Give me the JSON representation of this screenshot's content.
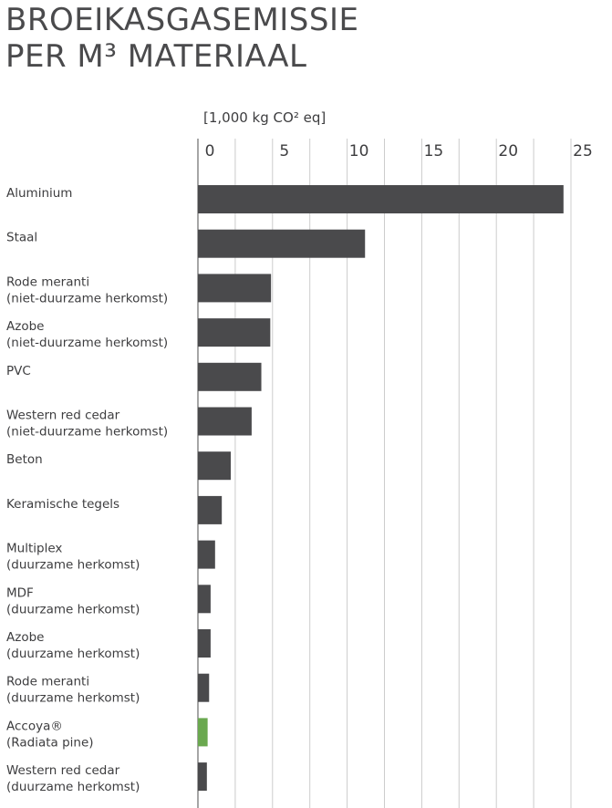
{
  "title": [
    "BROEIKASGASEMISSIE",
    "PER M³ MATERIAAL"
  ],
  "chart_data": {
    "type": "bar",
    "orientation": "horizontal",
    "unit_label": "[1,000 kg CO² eq]",
    "xlim": [
      0,
      25
    ],
    "ticks": [
      0,
      5,
      10,
      15,
      20,
      25
    ],
    "grid": true,
    "colors": {
      "bar": "#4a4a4c",
      "highlight": "#6aa84f",
      "grid": "#cccccc",
      "axis": "#888888"
    },
    "categories": [
      {
        "label": [
          "Aluminium"
        ],
        "value": 24.5,
        "highlight": false
      },
      {
        "label": [
          "Staal"
        ],
        "value": 11.2,
        "highlight": false
      },
      {
        "label": [
          "Rode meranti",
          "(niet-duurzame herkomst)"
        ],
        "value": 4.9,
        "highlight": false
      },
      {
        "label": [
          "Azobe",
          "(niet-duurzame herkomst)"
        ],
        "value": 4.85,
        "highlight": false
      },
      {
        "label": [
          "PVC"
        ],
        "value": 4.25,
        "highlight": false
      },
      {
        "label": [
          "Western red cedar",
          "(niet-duurzame herkomst)"
        ],
        "value": 3.6,
        "highlight": false
      },
      {
        "label": [
          "Beton"
        ],
        "value": 2.2,
        "highlight": false
      },
      {
        "label": [
          "Keramische tegels"
        ],
        "value": 1.6,
        "highlight": false
      },
      {
        "label": [
          "Multiplex",
          "(duurzame herkomst)"
        ],
        "value": 1.15,
        "highlight": false
      },
      {
        "label": [
          "MDF",
          "(duurzame herkomst)"
        ],
        "value": 0.85,
        "highlight": false
      },
      {
        "label": [
          "Azobe",
          "(duurzame herkomst)"
        ],
        "value": 0.85,
        "highlight": false
      },
      {
        "label": [
          "Rode meranti",
          "(duurzame herkomst)"
        ],
        "value": 0.75,
        "highlight": false
      },
      {
        "label": [
          "Accoya®",
          "(Radiata pine)"
        ],
        "value": 0.65,
        "highlight": true
      },
      {
        "label": [
          "Western red cedar",
          "(duurzame herkomst)"
        ],
        "value": 0.6,
        "highlight": false
      }
    ]
  }
}
